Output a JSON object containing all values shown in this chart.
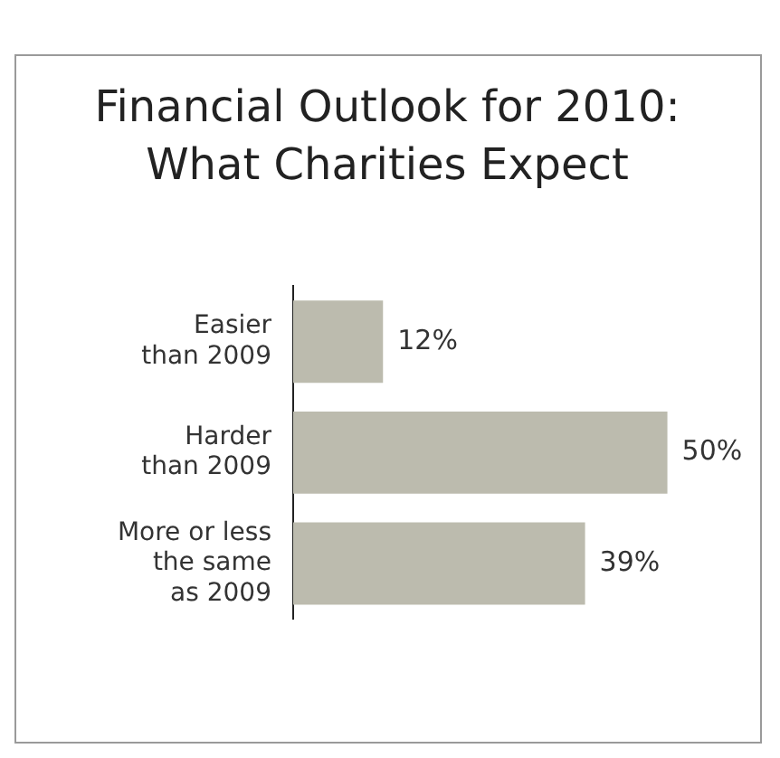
{
  "chart_data": {
    "type": "bar",
    "orientation": "horizontal",
    "title": "Financial Outlook for 2010: What Charities Expect",
    "categories": [
      "Easier\nthan 2009",
      "Harder\nthan 2009",
      "More or less\nthe same\nas 2009"
    ],
    "values": [
      12,
      50,
      39
    ],
    "color": "#bcbbae",
    "value_labels": [
      "12%",
      "50%",
      "39%"
    ],
    "legend": false
  }
}
